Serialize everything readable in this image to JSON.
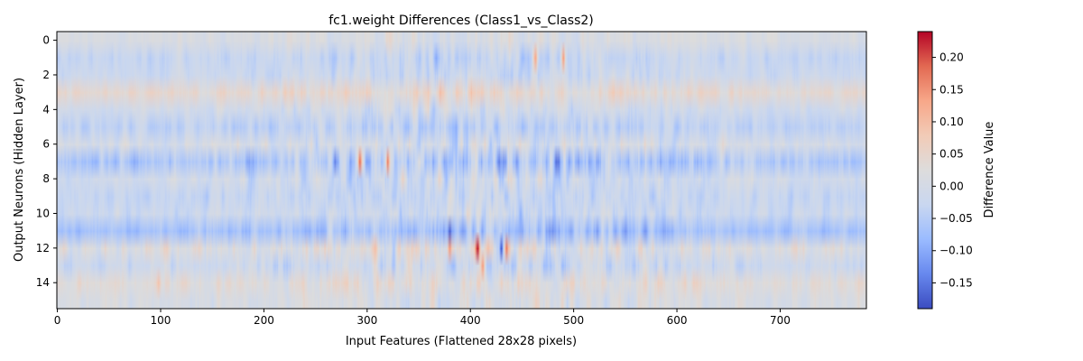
{
  "chart_data": {
    "type": "heatmap",
    "title": "fc1.weight Differences (Class1_vs_Class2)",
    "xlabel": "Input Features (Flattened 28x28 pixels)",
    "ylabel": "Output Neurons (Hidden Layer)",
    "n_cols": 784,
    "n_rows": 16,
    "xlim": [
      -0.5,
      783.5
    ],
    "ylim": [
      15.5,
      -0.5
    ],
    "x_ticks": [
      0,
      100,
      200,
      300,
      400,
      500,
      600,
      700
    ],
    "y_ticks": [
      0,
      2,
      4,
      6,
      8,
      10,
      12,
      14
    ],
    "colormap": "coolwarm",
    "colormap_stops": [
      "#3b4cc0",
      "#6788ee",
      "#9abbff",
      "#c9d7f0",
      "#dddcdc",
      "#f2cbb7",
      "#f7a789",
      "#e26952",
      "#b40426"
    ],
    "vmin": -0.19,
    "vmax": 0.24,
    "colorbar": {
      "label": "Difference Value",
      "ticks": [
        -0.15,
        -0.1,
        -0.05,
        0.0,
        0.05,
        0.1,
        0.15,
        0.2
      ],
      "tick_labels": [
        "−0.15",
        "−0.10",
        "−0.05",
        "0.00",
        "0.05",
        "0.10",
        "0.15",
        "0.20"
      ]
    },
    "row_mean": [
      0.01,
      -0.03,
      -0.02,
      0.04,
      -0.01,
      -0.04,
      0.0,
      -0.06,
      -0.01,
      -0.03,
      -0.02,
      -0.07,
      0.02,
      -0.02,
      0.03,
      0.01
    ],
    "row_amplitude": [
      0.035,
      0.04,
      0.04,
      0.045,
      0.045,
      0.045,
      0.06,
      0.07,
      0.055,
      0.045,
      0.05,
      0.05,
      0.075,
      0.055,
      0.05,
      0.045
    ],
    "hotspots": [
      {
        "row": 7,
        "col": 293,
        "value": 0.18
      },
      {
        "row": 7,
        "col": 320,
        "value": 0.17
      },
      {
        "row": 12,
        "col": 407,
        "value": 0.23
      },
      {
        "row": 12,
        "col": 380,
        "value": 0.14
      },
      {
        "row": 12,
        "col": 435,
        "value": 0.17
      },
      {
        "row": 13,
        "col": 412,
        "value": 0.14
      },
      {
        "row": 1,
        "col": 463,
        "value": 0.13
      },
      {
        "row": 1,
        "col": 490,
        "value": 0.14
      },
      {
        "row": 12,
        "col": 430,
        "value": -0.18
      },
      {
        "row": 11,
        "col": 380,
        "value": -0.17
      },
      {
        "row": 14,
        "col": 98,
        "value": 0.09
      }
    ]
  }
}
